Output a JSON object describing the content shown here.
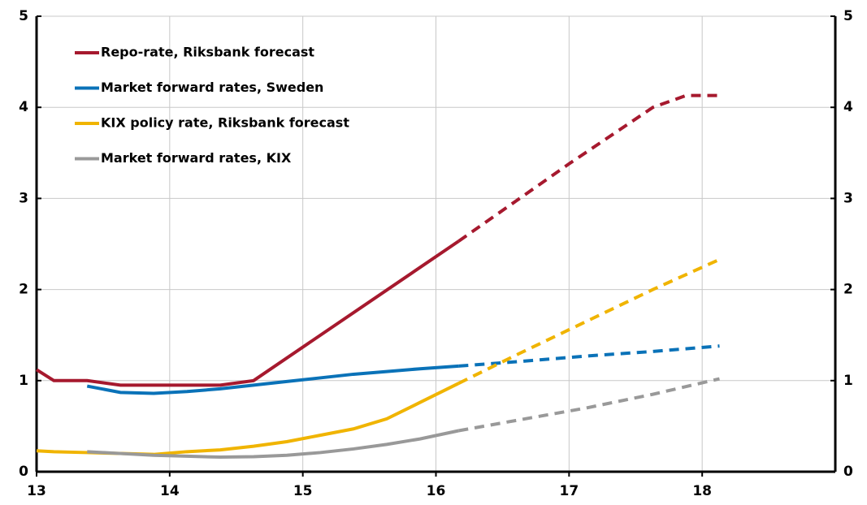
{
  "chart_data": {
    "type": "line",
    "xlim": [
      13,
      19
    ],
    "xticks": [
      13,
      14,
      15,
      16,
      17,
      18
    ],
    "ylim": [
      0,
      5
    ],
    "yticks": [
      0,
      1,
      2,
      3,
      4,
      5
    ],
    "y2lim": [
      0,
      5
    ],
    "y2ticks": [
      0,
      1,
      2,
      3,
      4,
      5
    ],
    "grid": true,
    "legend": "upper left",
    "dashed_from_x": 16.17,
    "series": [
      {
        "name": "Repo-rate, Riksbank forecast",
        "color": "#a6192e",
        "x": [
          13.0,
          13.13,
          13.38,
          13.63,
          14.38,
          14.63,
          16.17,
          17.0,
          17.63,
          17.88,
          18.13
        ],
        "values": [
          1.12,
          1.0,
          1.0,
          0.95,
          0.95,
          1.0,
          2.53,
          3.38,
          4.0,
          4.13,
          4.13
        ]
      },
      {
        "name": "Market forward rates, Sweden",
        "color": "#0a72b8",
        "x": [
          13.38,
          13.63,
          13.88,
          14.13,
          14.38,
          14.63,
          14.88,
          15.13,
          15.38,
          15.63,
          15.88,
          16.17,
          16.63,
          17.13,
          17.63,
          18.13
        ],
        "values": [
          0.94,
          0.87,
          0.86,
          0.88,
          0.91,
          0.95,
          0.99,
          1.03,
          1.07,
          1.1,
          1.13,
          1.16,
          1.21,
          1.27,
          1.32,
          1.38
        ]
      },
      {
        "name": "KIX policy rate, Riksbank forecast",
        "color": "#f0b400",
        "x": [
          13.0,
          13.13,
          13.38,
          13.63,
          13.88,
          14.13,
          14.38,
          14.63,
          14.88,
          15.13,
          15.38,
          15.63,
          15.88,
          16.17,
          16.63,
          17.13,
          17.63,
          18.13
        ],
        "values": [
          0.23,
          0.22,
          0.21,
          0.2,
          0.19,
          0.22,
          0.24,
          0.28,
          0.33,
          0.4,
          0.47,
          0.58,
          0.76,
          0.97,
          1.3,
          1.65,
          2.0,
          2.33
        ]
      },
      {
        "name": "Market forward rates, KIX",
        "color": "#999999",
        "x": [
          13.38,
          13.63,
          13.88,
          14.13,
          14.38,
          14.63,
          14.88,
          15.13,
          15.38,
          15.63,
          15.88,
          16.17,
          16.63,
          17.13,
          17.63,
          18.13
        ],
        "values": [
          0.22,
          0.2,
          0.18,
          0.17,
          0.16,
          0.165,
          0.18,
          0.21,
          0.25,
          0.3,
          0.36,
          0.45,
          0.57,
          0.7,
          0.85,
          1.02
        ]
      }
    ]
  }
}
